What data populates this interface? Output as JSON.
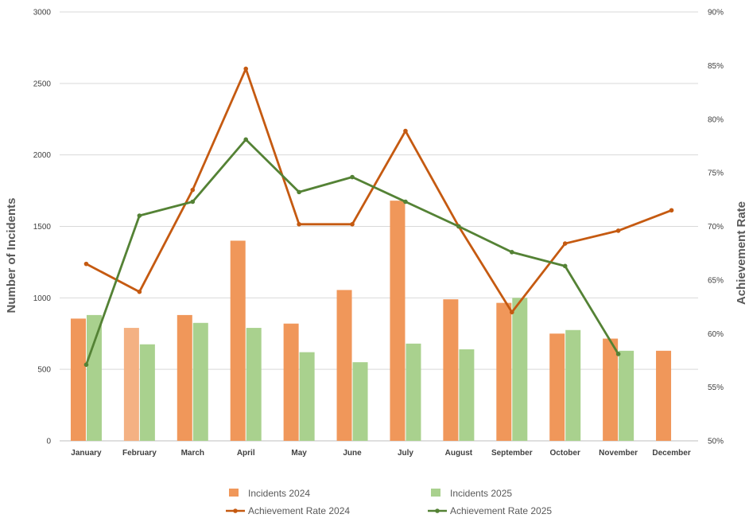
{
  "chart_data": {
    "type": "bar+line",
    "categories": [
      "January",
      "February",
      "March",
      "April",
      "May",
      "June",
      "July",
      "August",
      "September",
      "October",
      "November",
      "December"
    ],
    "bar_series": [
      {
        "name": "Incidents 2024",
        "values": [
          855,
          790,
          880,
          1400,
          820,
          1055,
          1680,
          990,
          965,
          750,
          715,
          630
        ],
        "color": "#f0975a",
        "highlight_index": 1,
        "highlight_color": "#f4b183"
      },
      {
        "name": "Incidents 2025",
        "values": [
          880,
          675,
          825,
          790,
          620,
          550,
          680,
          640,
          1000,
          775,
          630,
          null
        ],
        "color": "#a9d18e"
      }
    ],
    "line_series": [
      {
        "name": "Achievement Rate 2024",
        "values": [
          0.665,
          0.639,
          0.734,
          0.847,
          0.702,
          0.702,
          0.789,
          0.7,
          0.62,
          0.684,
          0.696,
          0.715
        ],
        "color": "#c55a11"
      },
      {
        "name": "Achievement Rate 2025",
        "values": [
          0.571,
          0.71,
          0.723,
          0.781,
          0.732,
          0.746,
          0.723,
          0.7,
          0.676,
          0.663,
          0.581,
          null
        ],
        "color": "#548235"
      }
    ],
    "y_left": {
      "title": "Number of Incidents",
      "min": 0,
      "max": 3000,
      "step": 500,
      "tick_labels": [
        "0",
        "500",
        "1000",
        "1500",
        "2000",
        "2500",
        "3000"
      ]
    },
    "y_right": {
      "title": "Achievement Rate",
      "min": 0.5,
      "max": 0.9,
      "step": 0.05,
      "tick_labels": [
        "50%",
        "55%",
        "60%",
        "65%",
        "70%",
        "75%",
        "80%",
        "85%",
        "90%"
      ]
    },
    "gridlines": true,
    "legend_position": "bottom"
  }
}
